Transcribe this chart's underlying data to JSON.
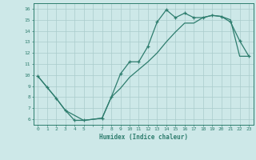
{
  "title": "",
  "xlabel": "Humidex (Indice chaleur)",
  "bg_color": "#cde8e8",
  "line_color": "#2e7d6e",
  "grid_color": "#aacccc",
  "xlim": [
    -0.5,
    23.5
  ],
  "ylim": [
    5.5,
    16.5
  ],
  "yticks": [
    6,
    7,
    8,
    9,
    10,
    11,
    12,
    13,
    14,
    15,
    16
  ],
  "line1_x": [
    0,
    1,
    2,
    3,
    4,
    5,
    7,
    8,
    9,
    10,
    11,
    12,
    13,
    14,
    15,
    16,
    17,
    18,
    19,
    20,
    21,
    22,
    23
  ],
  "line1_y": [
    9.9,
    8.9,
    7.9,
    6.8,
    5.9,
    5.9,
    6.1,
    8.0,
    10.1,
    11.2,
    11.2,
    12.6,
    14.8,
    15.9,
    15.2,
    15.6,
    15.2,
    15.2,
    15.4,
    15.3,
    14.8,
    13.1,
    11.7
  ],
  "line2_x": [
    0,
    1,
    2,
    3,
    5,
    7,
    8,
    9,
    10,
    11,
    12,
    13,
    14,
    15,
    16,
    17,
    18,
    19,
    20,
    21,
    22,
    23
  ],
  "line2_y": [
    9.9,
    8.9,
    7.9,
    6.8,
    5.9,
    6.1,
    8.0,
    8.8,
    9.8,
    10.5,
    11.2,
    12.0,
    13.0,
    13.9,
    14.7,
    14.7,
    15.2,
    15.4,
    15.3,
    15.0,
    11.7,
    11.7
  ]
}
